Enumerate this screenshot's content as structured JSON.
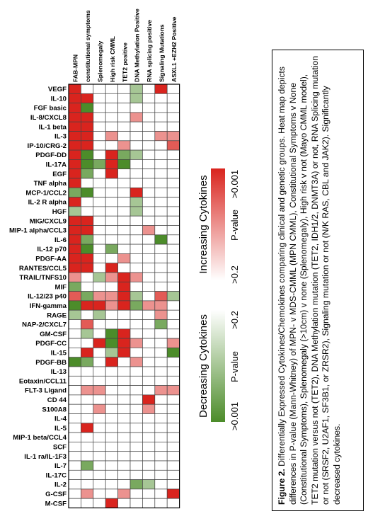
{
  "chart_data": {
    "type": "heatmap",
    "columns": [
      "FAB-MPN",
      "constitutional symptoms",
      "Splenomegaly",
      "High risk CMML",
      "TET2 positive",
      "DNA Methylation Positive",
      "RNA splicing positive",
      "Signaling Mutations",
      "ASXL1 +EZH2 Positive"
    ],
    "rows": [
      "VEGF",
      "IL-10",
      "FGF basic",
      "IL-8/CXCL8",
      "IL-1 beta",
      "IL-3",
      "IP-10/CRG-2",
      "PDGF-DD",
      "IL-17A",
      "EGF",
      "TNF alpha",
      "MCP-1/CCL2",
      "IL-2 R alpha",
      "HGF",
      "MIG/CXCL9",
      "MIP-1 alpha/CCL3",
      "IL-6",
      "IL-12 p70",
      "PDGF-AA",
      "RANTES/CCL5",
      "TRAIL/TNFS10",
      "MIF",
      "IL-12/23 p40",
      "IFN-gamma",
      "RAGE",
      "NAP-2/CXCL7",
      "GM-CSF",
      "PDGF-CC",
      "IL-15",
      "PDGF-BB",
      "IL-13",
      "Eotaxin/CCL11",
      "FLT-3 Ligand",
      "CD 44",
      "S100A8",
      "IL-4",
      "IL-5",
      "MIP-1 beta/CCL4",
      "SCF",
      "IL-1 ra/IL-1F3",
      "IL-7",
      "IL-17C",
      "IL-2",
      "G-CSF",
      "M-CSF"
    ],
    "values": [
      [
        3,
        0,
        0,
        0,
        0,
        -1,
        0,
        3,
        0
      ],
      [
        3,
        3,
        0,
        0,
        0,
        -1,
        0,
        0,
        0
      ],
      [
        3,
        -3,
        0,
        0,
        0,
        0,
        0,
        0,
        0
      ],
      [
        3,
        3,
        0,
        0,
        0,
        1,
        0,
        0,
        0
      ],
      [
        3,
        3,
        0,
        0,
        0,
        0,
        0,
        0,
        0
      ],
      [
        3,
        3,
        0,
        1,
        0,
        0,
        0,
        1,
        1
      ],
      [
        3,
        3,
        0,
        0,
        1,
        0,
        0,
        0,
        2
      ],
      [
        3,
        -3,
        0,
        3,
        -2,
        -1,
        0,
        0,
        0
      ],
      [
        3,
        -3,
        -2,
        3,
        -3,
        0,
        0,
        0,
        0
      ],
      [
        3,
        -2,
        0,
        3,
        0,
        0,
        0,
        0,
        0
      ],
      [
        3,
        0,
        0,
        0,
        0,
        0,
        0,
        0,
        0
      ],
      [
        -2,
        -3,
        0,
        0,
        0,
        3,
        0,
        0,
        0
      ],
      [
        3,
        0,
        0,
        0,
        0,
        -1,
        0,
        0,
        0
      ],
      [
        -1,
        0,
        0,
        0,
        0,
        -1,
        0,
        0,
        0
      ],
      [
        3,
        3,
        0,
        0,
        0,
        0,
        0,
        0,
        0
      ],
      [
        3,
        3,
        0,
        0,
        0,
        0,
        1,
        0,
        0
      ],
      [
        3,
        -2,
        0,
        0,
        0,
        0,
        0,
        -3,
        0
      ],
      [
        3,
        -3,
        0,
        -2,
        0,
        0,
        0,
        0,
        0
      ],
      [
        3,
        3,
        0,
        0,
        1,
        0,
        0,
        0,
        0
      ],
      [
        3,
        3,
        0,
        3,
        0,
        0,
        0,
        0,
        0
      ],
      [
        1,
        0,
        -1,
        1,
        3,
        1,
        0,
        0,
        0
      ],
      [
        -2,
        0,
        0,
        0,
        3,
        0,
        0,
        0,
        0
      ],
      [
        2,
        -2,
        1,
        1,
        3,
        -1,
        0,
        2,
        -1
      ],
      [
        -3,
        3,
        3,
        1,
        3,
        -2,
        1,
        1,
        0
      ],
      [
        -1,
        0,
        -1,
        0,
        0,
        0,
        0,
        1,
        0
      ],
      [
        0,
        2,
        0,
        0,
        0,
        0,
        0,
        -2,
        0
      ],
      [
        0,
        -1,
        0,
        -3,
        3,
        0,
        0,
        0,
        0
      ],
      [
        0,
        0,
        3,
        -3,
        3,
        1,
        0,
        0,
        1
      ],
      [
        0,
        3,
        0,
        -1,
        3,
        0,
        0,
        0,
        -3
      ],
      [
        -3,
        -2,
        0,
        3,
        0,
        1,
        0,
        0,
        0
      ],
      [
        0,
        0,
        0,
        0,
        0,
        0,
        0,
        0,
        0
      ],
      [
        0,
        0,
        0,
        0,
        0,
        0,
        0,
        0,
        0
      ],
      [
        0,
        1,
        1,
        0,
        0,
        0,
        0,
        1,
        1
      ],
      [
        0,
        0,
        0,
        0,
        0,
        0,
        3,
        0,
        0
      ],
      [
        0,
        0,
        1,
        0,
        0,
        0,
        1,
        0,
        0
      ],
      [
        0,
        0,
        0,
        0,
        0,
        0,
        0,
        0,
        0
      ],
      [
        0,
        3,
        0,
        0,
        0,
        0,
        0,
        0,
        0
      ],
      [
        0,
        0,
        0,
        0,
        0,
        0,
        0,
        0,
        0
      ],
      [
        0,
        0,
        0,
        0,
        0,
        0,
        0,
        0,
        0
      ],
      [
        0,
        0,
        0,
        0,
        0,
        0,
        0,
        0,
        0
      ],
      [
        0,
        -2,
        0,
        0,
        0,
        0,
        0,
        0,
        0
      ],
      [
        0,
        0,
        0,
        0,
        0,
        0,
        0,
        0,
        0
      ],
      [
        0,
        0,
        0,
        0,
        0,
        -2,
        -1,
        0,
        0
      ],
      [
        0,
        1,
        0,
        0,
        1,
        0,
        0,
        0,
        3
      ],
      [
        0,
        0,
        0,
        3,
        0,
        0,
        0,
        0,
        0
      ]
    ],
    "value_scale": "signed intensity: positive = increasing (red), negative = decreasing (green)",
    "colors": {
      "increase": "#d9241e",
      "decrease": "#4c8c2a",
      "neutral": "#ffffff",
      "grid": "#444444"
    },
    "legend": {
      "increase_title": "Increasing Cytokines",
      "decrease_title": "Decreasing Cytokines",
      "pvalue_label": "P-value",
      "inc_low": ">0.2",
      "inc_high": ">0.001",
      "dec_low": ">0.001",
      "dec_high": ">0.2"
    }
  },
  "caption": {
    "label": "Figure 2.",
    "text": "Differentially Expressed Cytokines/Chemokines comparing clinical and genetic groups. Heat map depicts differences in P-value (Mann-Whitney) of MPN- v MDS-CMML (MPN CMML), Constitutional Symptoms v None (Constitutional Symptoms), Splenomegaly (>10cm) v none (Splenomegaly), High risk v not (Mayo CMML model), TET2 mutation versus not (TET2), DNA Methylation mutation (TET2, IDH1/2, DNMT3A) or not, RNA Splicing mutation or not (SRSF2, U2AF1, SF3B1, or ZRSR2), Signaling mutation or not (N/K RAS, CBL and JAK2). Significantly decreased cytokines."
  }
}
